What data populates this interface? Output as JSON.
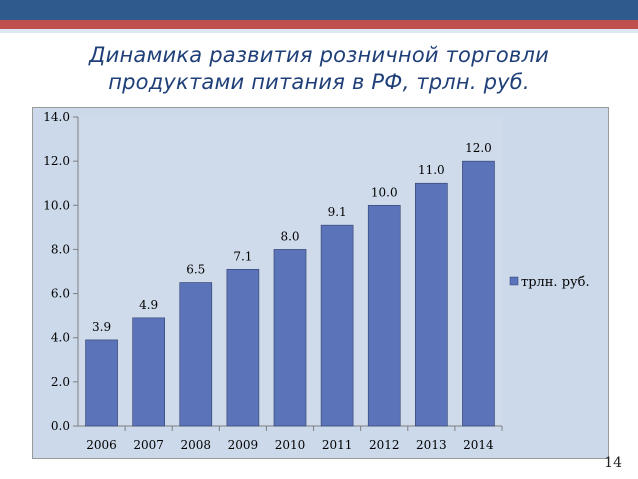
{
  "slide": {
    "title_line1": "Динамика развития розничной торговли",
    "title_line2": "продуктами питания в РФ, трлн. руб.",
    "page_number": "14"
  },
  "colors": {
    "bar": "#5b73b8",
    "plot_bg": "#ccd9ea",
    "title": "#1f3f78"
  },
  "chart_data": {
    "type": "bar",
    "categories": [
      "2006",
      "2007",
      "2008",
      "2009",
      "2010",
      "2011",
      "2012",
      "2013",
      "2014"
    ],
    "series": [
      {
        "name": "трлн. руб.",
        "values": [
          3.9,
          4.9,
          6.5,
          7.1,
          8.0,
          9.1,
          10.0,
          11.0,
          12.0
        ],
        "labels": [
          "3.9",
          "4.9",
          "6.5",
          "7.1",
          "8.0",
          "9.1",
          "10.0",
          "11.0",
          "12.0"
        ]
      }
    ],
    "ylim": [
      0,
      14
    ],
    "yticks": [
      "0.0",
      "2.0",
      "4.0",
      "6.0",
      "8.0",
      "10.0",
      "12.0",
      "14.0"
    ],
    "grid": false,
    "legend_position": "right"
  }
}
